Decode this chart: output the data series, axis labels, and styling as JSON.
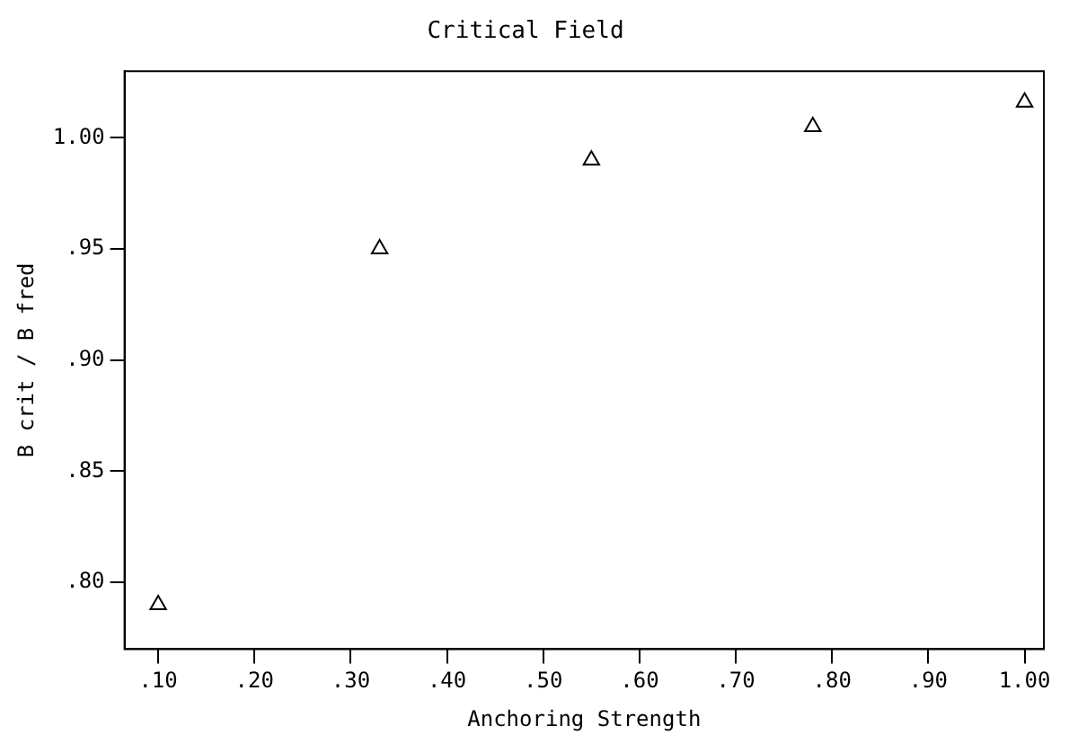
{
  "chart_data": {
    "type": "scatter",
    "title": "Critical Field",
    "xlabel": "Anchoring Strength",
    "ylabel": "B crit / B fred",
    "series": [
      {
        "color": "#000000",
        "x": [
          0.1,
          0.33,
          0.55,
          0.78,
          1.0
        ],
        "values": [
          0.79,
          0.95,
          0.99,
          1.005,
          1.016
        ]
      }
    ],
    "xlim": [
      0.065,
      1.02
    ],
    "ylim": [
      0.77,
      1.03
    ],
    "xticks": [
      {
        "value": 0.1,
        "label": ".10"
      },
      {
        "value": 0.2,
        "label": ".20"
      },
      {
        "value": 0.3,
        "label": ".30"
      },
      {
        "value": 0.4,
        "label": ".40"
      },
      {
        "value": 0.5,
        "label": ".50"
      },
      {
        "value": 0.6,
        "label": ".60"
      },
      {
        "value": 0.7,
        "label": ".70"
      },
      {
        "value": 0.8,
        "label": ".80"
      },
      {
        "value": 0.9,
        "label": ".90"
      },
      {
        "value": 1.0,
        "label": "1.00"
      }
    ],
    "yticks": [
      {
        "value": 0.8,
        "label": ".80"
      },
      {
        "value": 0.85,
        "label": ".85"
      },
      {
        "value": 0.9,
        "label": ".90"
      },
      {
        "value": 0.95,
        "label": ".95"
      },
      {
        "value": 1.0,
        "label": "1.00"
      }
    ],
    "grid": false,
    "legend": false,
    "marker": "triangle"
  }
}
